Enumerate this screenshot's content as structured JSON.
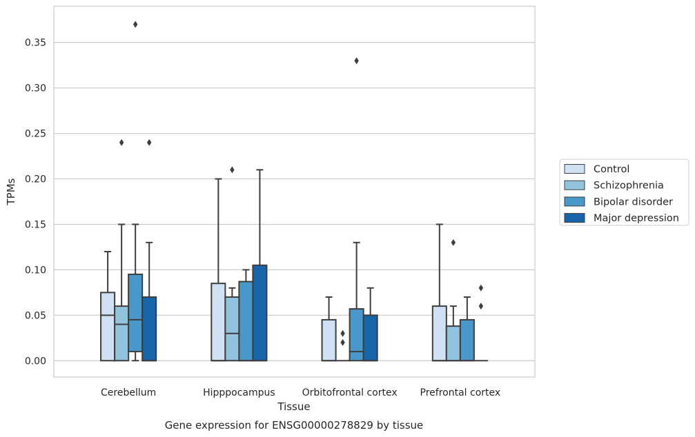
{
  "chart_data": {
    "type": "box",
    "title": "Gene expression for ENSG00000278829 by tissue",
    "xlabel": "Tissue",
    "ylabel": "TPMs",
    "ylim": [
      -0.018,
      0.39
    ],
    "yticks": [
      0.0,
      0.05,
      0.1,
      0.15,
      0.2,
      0.25,
      0.3,
      0.35
    ],
    "ytick_labels": [
      "0.00",
      "0.05",
      "0.10",
      "0.15",
      "0.20",
      "0.25",
      "0.30",
      "0.35"
    ],
    "grid": "horizontal",
    "legend_position": "right",
    "categories": [
      "Cerebellum",
      "Hipppocampus",
      "Orbitofrontal cortex",
      "Prefrontal cortex"
    ],
    "series": [
      {
        "name": "Control",
        "color": "#cfe1f2",
        "boxes": [
          {
            "min": 0.0,
            "q1": 0.0,
            "median": 0.05,
            "q3": 0.075,
            "max": 0.12,
            "outliers": []
          },
          {
            "min": 0.0,
            "q1": 0.0,
            "median": 0.0,
            "q3": 0.085,
            "max": 0.2,
            "outliers": []
          },
          {
            "min": 0.0,
            "q1": 0.0,
            "median": 0.0,
            "q3": 0.045,
            "max": 0.07,
            "outliers": []
          },
          {
            "min": 0.0,
            "q1": 0.0,
            "median": 0.0,
            "q3": 0.06,
            "max": 0.15,
            "outliers": []
          }
        ]
      },
      {
        "name": "Schizophrenia",
        "color": "#93c4de",
        "boxes": [
          {
            "min": 0.0,
            "q1": 0.0,
            "median": 0.04,
            "q3": 0.06,
            "max": 0.15,
            "outliers": [
              0.24
            ]
          },
          {
            "min": 0.0,
            "q1": 0.0,
            "median": 0.03,
            "q3": 0.07,
            "max": 0.08,
            "outliers": [
              0.21
            ]
          },
          {
            "min": 0.0,
            "q1": 0.0,
            "median": 0.0,
            "q3": 0.0,
            "max": 0.0,
            "outliers": [
              0.03,
              0.02
            ]
          },
          {
            "min": 0.0,
            "q1": 0.0,
            "median": 0.0,
            "q3": 0.038,
            "max": 0.06,
            "outliers": [
              0.13
            ]
          }
        ]
      },
      {
        "name": "Bipolar disorder",
        "color": "#4a98c9",
        "boxes": [
          {
            "min": 0.0,
            "q1": 0.01,
            "median": 0.045,
            "q3": 0.095,
            "max": 0.15,
            "outliers": [
              0.37
            ]
          },
          {
            "min": 0.0,
            "q1": 0.0,
            "median": 0.0,
            "q3": 0.087,
            "max": 0.1,
            "outliers": []
          },
          {
            "min": 0.0,
            "q1": 0.0,
            "median": 0.01,
            "q3": 0.057,
            "max": 0.13,
            "outliers": [
              0.33
            ]
          },
          {
            "min": 0.0,
            "q1": 0.0,
            "median": 0.0,
            "q3": 0.045,
            "max": 0.07,
            "outliers": []
          }
        ]
      },
      {
        "name": "Major depression",
        "color": "#1764ab",
        "boxes": [
          {
            "min": 0.0,
            "q1": 0.0,
            "median": 0.0,
            "q3": 0.07,
            "max": 0.13,
            "outliers": [
              0.24
            ]
          },
          {
            "min": 0.0,
            "q1": 0.0,
            "median": 0.0,
            "q3": 0.105,
            "max": 0.21,
            "outliers": []
          },
          {
            "min": 0.0,
            "q1": 0.0,
            "median": 0.0,
            "q3": 0.05,
            "max": 0.08,
            "outliers": []
          },
          {
            "min": 0.0,
            "q1": 0.0,
            "median": 0.0,
            "q3": 0.0,
            "max": 0.0,
            "outliers": [
              0.08,
              0.06
            ]
          }
        ]
      }
    ]
  }
}
